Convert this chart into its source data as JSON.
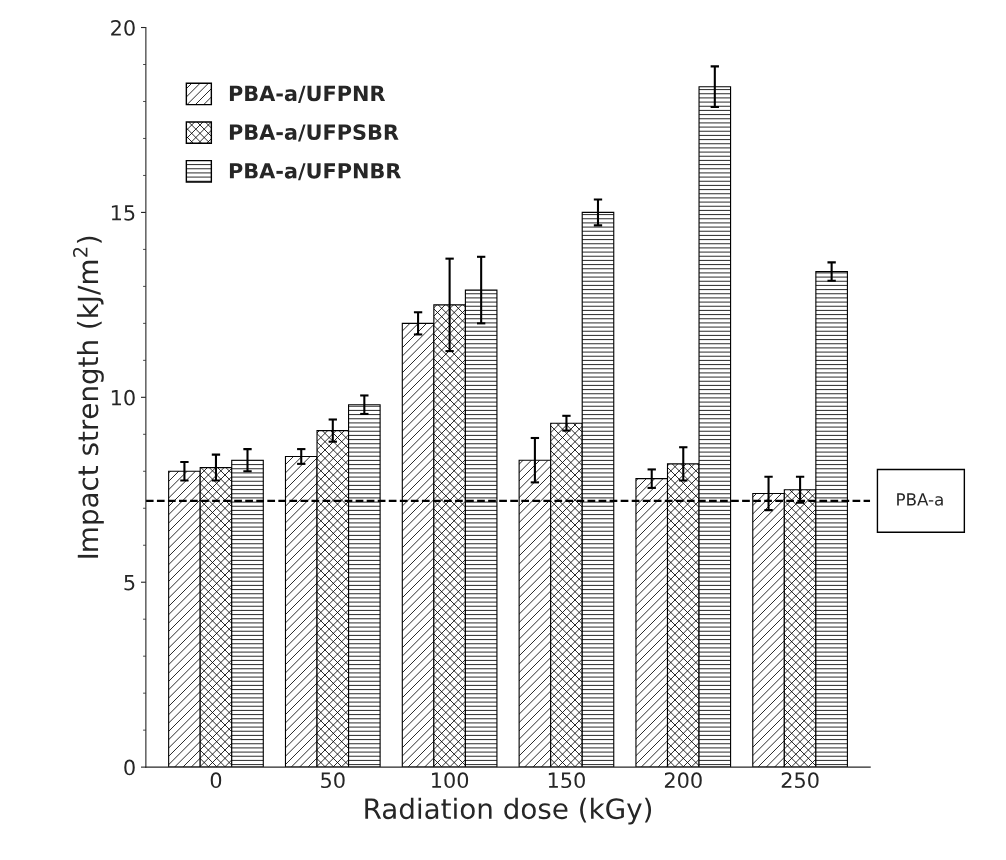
{
  "chart_data": {
    "type": "bar",
    "xlabel": "Radiation dose (kGy)",
    "ylabel": "Impact strength (kJ/m$^{2}$)",
    "categories": [
      "0",
      "50",
      "100",
      "150",
      "200",
      "250"
    ],
    "series": [
      {
        "name": "PBA-a/UFPNR",
        "color": "#000000",
        "values": [
          8.0,
          8.4,
          12.0,
          8.3,
          7.8,
          7.4
        ],
        "errors": [
          0.25,
          0.2,
          0.3,
          0.6,
          0.25,
          0.45
        ]
      },
      {
        "name": "PBA-a/UFPSBR",
        "color": "#000000",
        "values": [
          8.1,
          9.1,
          12.5,
          9.3,
          8.2,
          7.5
        ],
        "errors": [
          0.35,
          0.3,
          1.25,
          0.2,
          0.45,
          0.35
        ]
      },
      {
        "name": "PBA-a/UFPNBR",
        "color": "#000000",
        "values": [
          8.3,
          9.8,
          12.9,
          15.0,
          18.4,
          13.4
        ],
        "errors": [
          0.3,
          0.25,
          0.9,
          0.35,
          0.55,
          0.25
        ]
      }
    ],
    "ylim": [
      0,
      20
    ],
    "yticks": [
      0,
      5,
      10,
      15,
      20
    ],
    "ref_lines": [
      {
        "axis": "y",
        "value": 7.2,
        "label": "PBA-a",
        "color": "#000000",
        "line_style": "dashed"
      }
    ],
    "legend": "top left",
    "grid": false
  }
}
